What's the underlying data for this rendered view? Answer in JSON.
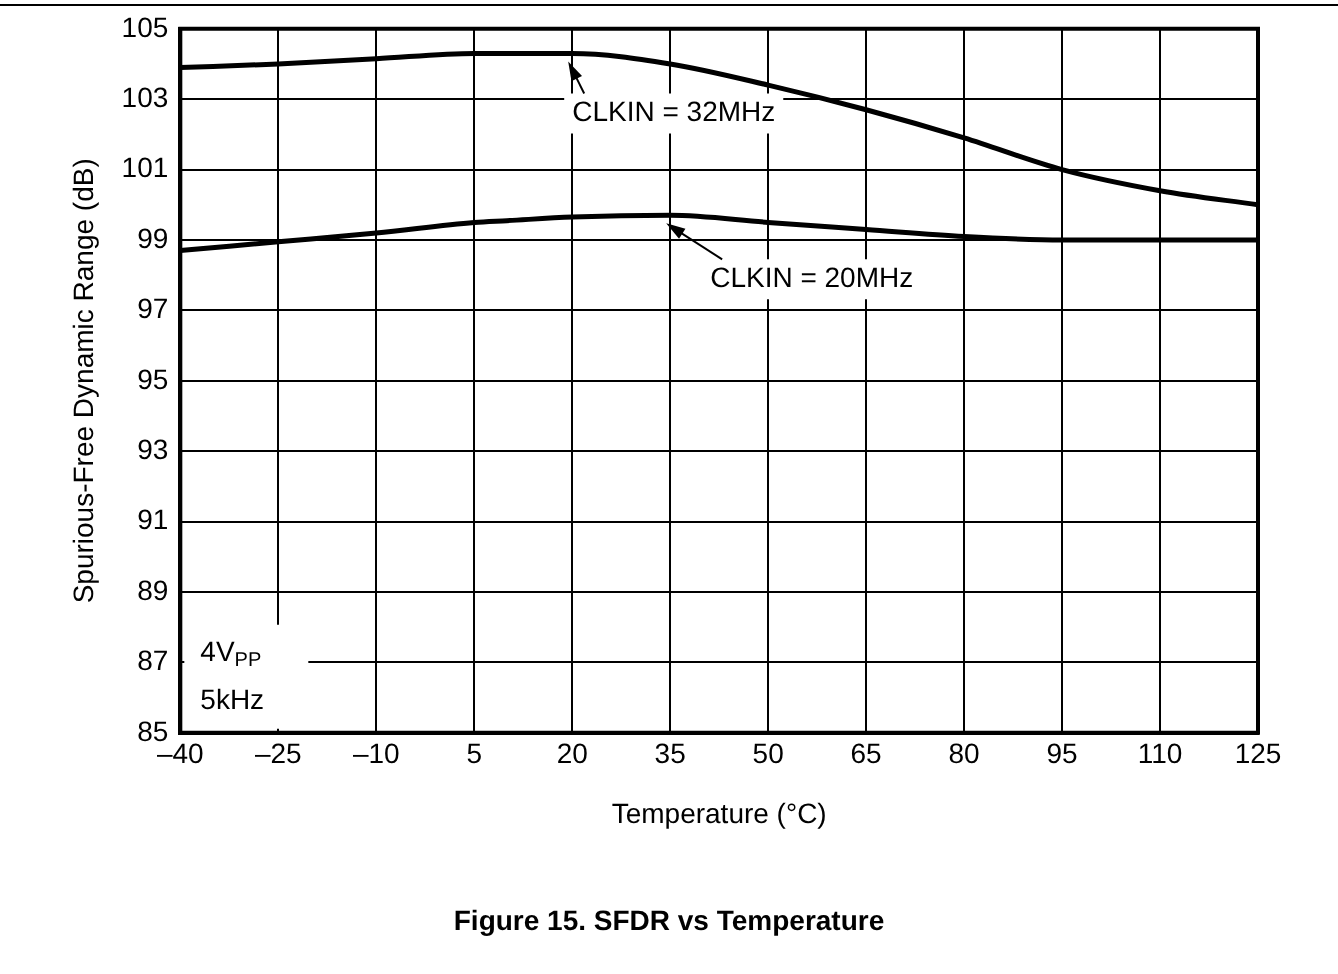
{
  "chart_data": {
    "type": "line",
    "title": "Figure 15. SFDR vs Temperature",
    "xlabel": "Temperature (°C)",
    "ylabel": "Spurious-Free Dynamic Range (dB)",
    "x": [
      -40,
      -25,
      -10,
      5,
      10,
      20,
      35,
      50,
      65,
      80,
      95,
      110,
      125
    ],
    "series": [
      {
        "color": "#000000",
        "values": [
          103.9,
          104.0,
          104.15,
          104.3,
          104.3,
          104.3,
          104.0,
          103.4,
          102.7,
          101.9,
          101.0,
          100.4,
          100.0
        ]
      },
      {
        "color": "#000000",
        "values": [
          98.7,
          98.95,
          99.2,
          99.5,
          99.55,
          99.65,
          99.7,
          99.5,
          99.3,
          99.1,
          99.0,
          99.0,
          99.0
        ]
      }
    ],
    "annotations": [
      {
        "text": "CLKIN = 32MHz",
        "x": 20,
        "y": 104.3
      },
      {
        "text": "CLKIN = 20MHz",
        "x": 35,
        "y": 99.7
      },
      "4V$_{PP}$",
      "5kHz"
    ],
    "xlim": [
      -40,
      125
    ],
    "ylim": [
      85,
      105
    ],
    "xticks": [
      {
        "value": -40,
        "label": "–40"
      },
      {
        "value": -25,
        "label": "–25"
      },
      {
        "value": -10,
        "label": "–10"
      },
      5,
      20,
      35,
      50,
      65,
      80,
      95,
      110,
      125
    ],
    "yticks": [
      85,
      87,
      89,
      91,
      93,
      95,
      97,
      99,
      101,
      103,
      105
    ],
    "grid": true,
    "marker": "none",
    "line_style": "solid"
  }
}
